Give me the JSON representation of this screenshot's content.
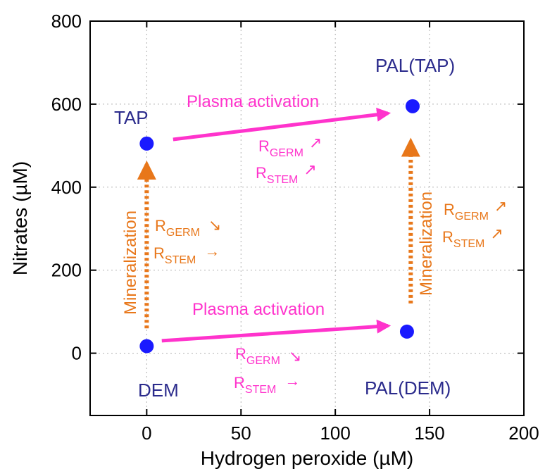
{
  "colors": {
    "point": "#1a1aff",
    "point_label": "#2b2b8c",
    "plasma": "#ff33cc",
    "mineral": "#e8771a",
    "axis": "#000000",
    "grid": "#b0b0b0"
  },
  "chart_data": {
    "type": "scatter",
    "xlabel": "Hydrogen peroxide (µM)",
    "ylabel": "Nitrates (µM)",
    "xlim": [
      -30,
      200
    ],
    "ylim": [
      -150,
      800
    ],
    "xticks": [
      "0",
      "50",
      "100",
      "150",
      "200"
    ],
    "yticks": [
      "0",
      "200",
      "400",
      "600",
      "800"
    ],
    "grid": true,
    "points": [
      {
        "label": "TAP",
        "x": 0,
        "y": 505
      },
      {
        "label": "PAL(TAP)",
        "x": 141,
        "y": 595
      },
      {
        "label": "DEM",
        "x": 0,
        "y": 17
      },
      {
        "label": "PAL(DEM)",
        "x": 138,
        "y": 52
      }
    ],
    "arrows": [
      {
        "label": "Plasma activation",
        "from": [
          14,
          515
        ],
        "to": [
          128,
          578
        ]
      },
      {
        "label": "Plasma activation",
        "from": [
          8,
          30
        ],
        "to": [
          128,
          66
        ]
      },
      {
        "label": "Mineralization",
        "from": [
          0,
          60
        ],
        "to": [
          0,
          455
        ]
      },
      {
        "label": "Mineralization",
        "from": [
          140,
          120
        ],
        "to": [
          140,
          510
        ]
      }
    ],
    "annotations": [
      {
        "r1": "R",
        "sub1": "GERM",
        "arrow1": "↗",
        "r2": "R",
        "sub2": "STEM",
        "arrow2": "↗"
      },
      {
        "r1": "R",
        "sub1": "GERM",
        "arrow1": "↘",
        "r2": "R",
        "sub2": "STEM",
        "arrow2": "→"
      },
      {
        "r1": "R",
        "sub1": "GERM",
        "arrow1": "↘",
        "r2": "R",
        "sub2": "STEM",
        "arrow2": "→"
      },
      {
        "r1": "R",
        "sub1": "GERM",
        "arrow1": "↗",
        "r2": "R",
        "sub2": "STEM",
        "arrow2": "↗"
      }
    ]
  }
}
